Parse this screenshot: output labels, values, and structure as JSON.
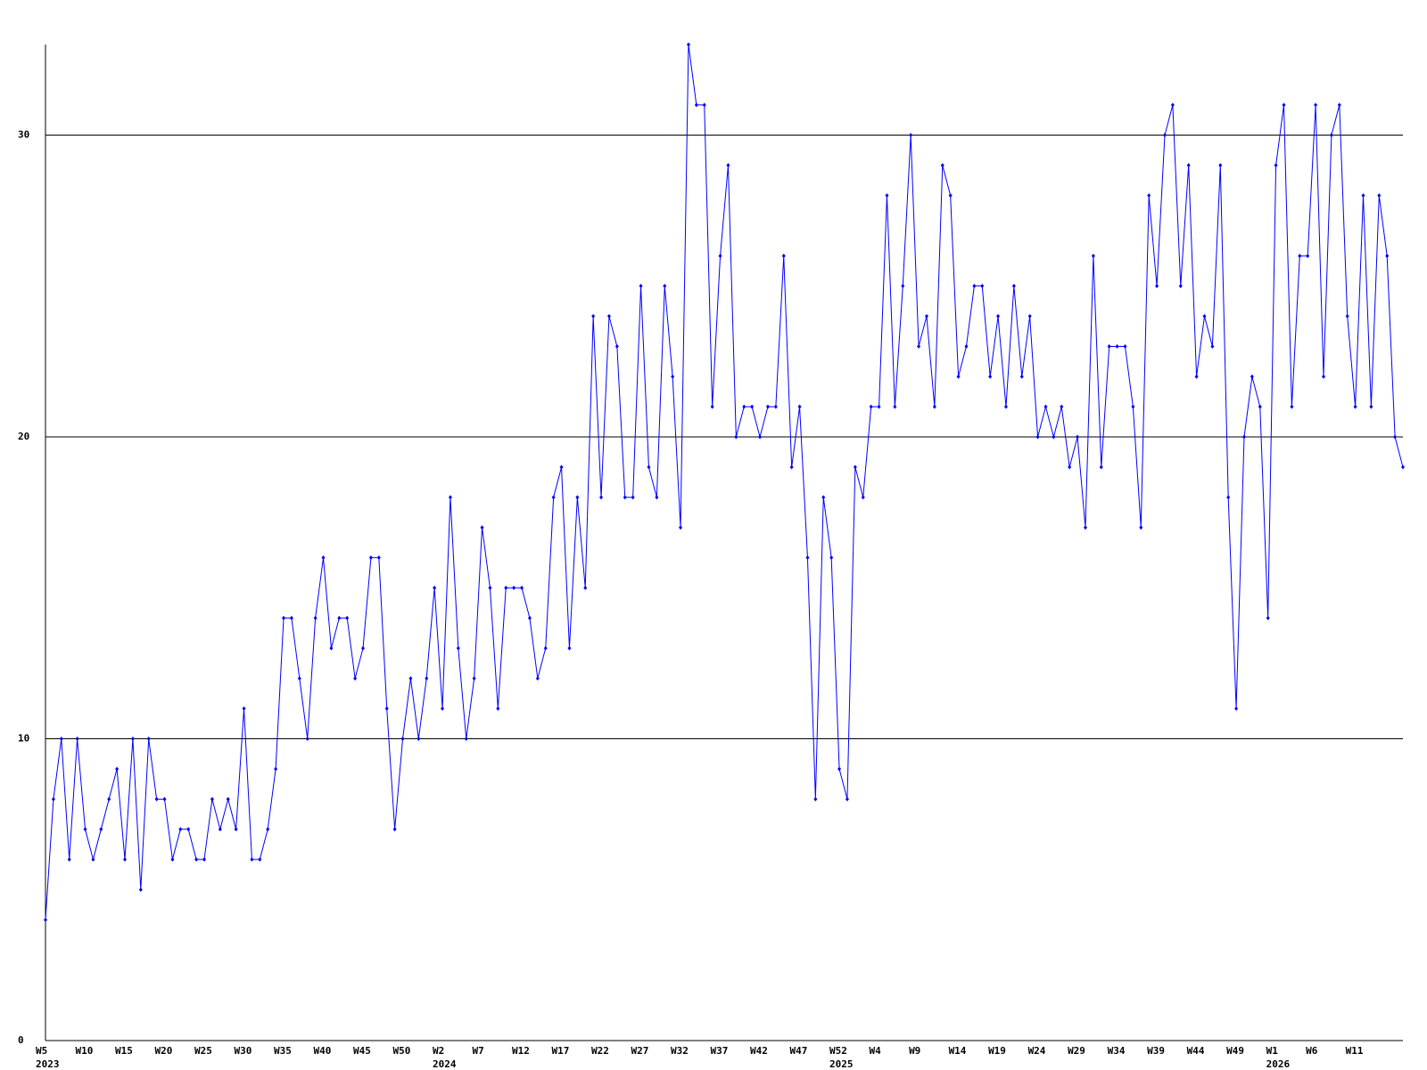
{
  "chart_data": {
    "type": "line",
    "categories": [
      "W5",
      null,
      null,
      null,
      null,
      "W10",
      null,
      null,
      null,
      null,
      "W15",
      null,
      null,
      null,
      null,
      "W20",
      null,
      null,
      null,
      null,
      "W25",
      null,
      null,
      null,
      null,
      "W30",
      null,
      null,
      null,
      null,
      "W35",
      null,
      null,
      null,
      null,
      "W40",
      null,
      null,
      null,
      null,
      "W45",
      null,
      null,
      null,
      null,
      "W50",
      null,
      null,
      null,
      null,
      "W2",
      null,
      null,
      null,
      null,
      "W7",
      null,
      null,
      null,
      null,
      "W12",
      null,
      null,
      null,
      null,
      "W17",
      null,
      null,
      null,
      null,
      "W22",
      null,
      null,
      null,
      null,
      "W27",
      null,
      null,
      null,
      null,
      "W32",
      null,
      null,
      null,
      null,
      "W37",
      null,
      null,
      null,
      null,
      "W42",
      null,
      null,
      null,
      null,
      "W47",
      null,
      null,
      null,
      null,
      "W52",
      null,
      null,
      null,
      null,
      "W4",
      null,
      null,
      null,
      null,
      "W9",
      null,
      null,
      null,
      null,
      "W14",
      null,
      null,
      null,
      null,
      "W19",
      null,
      null,
      null,
      null,
      "W24",
      null,
      null,
      null,
      null,
      "W29",
      null,
      null,
      null,
      null,
      "W34",
      null,
      null,
      null,
      null,
      "W39",
      null,
      null,
      null,
      null,
      "W44",
      null,
      null,
      null,
      null,
      "W49",
      null,
      null,
      null,
      null,
      "W1",
      null,
      null,
      null,
      null,
      "W6",
      null,
      null,
      null,
      null,
      "W11",
      null,
      null,
      null,
      null,
      null,
      null
    ],
    "category_years": [
      "2023",
      null,
      null,
      null,
      null,
      null,
      null,
      null,
      null,
      null,
      null,
      null,
      null,
      null,
      null,
      null,
      null,
      null,
      null,
      null,
      null,
      null,
      null,
      null,
      null,
      null,
      null,
      null,
      null,
      null,
      null,
      null,
      null,
      null,
      null,
      null,
      null,
      null,
      null,
      null,
      null,
      null,
      null,
      null,
      null,
      null,
      null,
      null,
      null,
      null,
      "2024",
      null,
      null,
      null,
      null,
      null,
      null,
      null,
      null,
      null,
      null,
      null,
      null,
      null,
      null,
      null,
      null,
      null,
      null,
      null,
      null,
      null,
      null,
      null,
      null,
      null,
      null,
      null,
      null,
      null,
      null,
      null,
      null,
      null,
      null,
      null,
      null,
      null,
      null,
      null,
      null,
      null,
      null,
      null,
      null,
      null,
      null,
      null,
      null,
      null,
      "2025",
      null,
      null,
      null,
      null,
      null,
      null,
      null,
      null,
      null,
      null,
      null,
      null,
      null,
      null,
      null,
      null,
      null,
      null,
      null,
      null,
      null,
      null,
      null,
      null,
      null,
      null,
      null,
      null,
      null,
      null,
      null,
      null,
      null,
      null,
      null,
      null,
      null,
      null,
      null,
      null,
      null,
      null,
      null,
      null,
      null,
      null,
      null,
      null,
      null,
      null,
      null,
      null,
      null,
      null,
      "2026",
      null,
      null,
      null,
      null,
      null,
      null,
      null,
      null,
      null,
      null,
      null,
      null,
      null,
      null,
      null,
      null
    ],
    "series": [
      {
        "color": "#0000ff",
        "values": [
          4,
          8,
          10,
          6,
          10,
          7,
          6,
          7,
          8,
          9,
          6,
          10,
          5,
          10,
          8,
          8,
          6,
          7,
          7,
          6,
          6,
          8,
          7,
          8,
          7,
          11,
          6,
          6,
          7,
          9,
          14,
          14,
          12,
          10,
          14,
          16,
          13,
          14,
          14,
          12,
          13,
          16,
          16,
          11,
          7,
          10,
          12,
          10,
          12,
          15,
          11,
          18,
          13,
          10,
          12,
          17,
          15,
          11,
          15,
          15,
          15,
          14,
          12,
          13,
          18,
          19,
          13,
          18,
          15,
          24,
          18,
          24,
          23,
          18,
          18,
          25,
          19,
          18,
          25,
          22,
          17,
          33,
          31,
          31,
          21,
          26,
          29,
          20,
          21,
          21,
          20,
          21,
          21,
          26,
          19,
          21,
          16,
          8,
          18,
          16,
          9,
          8,
          19,
          18,
          21,
          21,
          28,
          21,
          25,
          30,
          23,
          24,
          21,
          29,
          28,
          22,
          23,
          25,
          25,
          22,
          24,
          21,
          25,
          22,
          24,
          20,
          21,
          20,
          21,
          19,
          20,
          17,
          26,
          19,
          23,
          23,
          23,
          21,
          17,
          28,
          25,
          30,
          31,
          25,
          29,
          22,
          24,
          23,
          29,
          18,
          11,
          20,
          22,
          21,
          14,
          29,
          31,
          21,
          26,
          26,
          31,
          22,
          30,
          31,
          24,
          21,
          28,
          21,
          28,
          26,
          20,
          19
        ]
      }
    ],
    "ylim": [
      0,
      33
    ],
    "yticks": [
      0,
      10,
      20,
      30
    ],
    "grid": true
  }
}
